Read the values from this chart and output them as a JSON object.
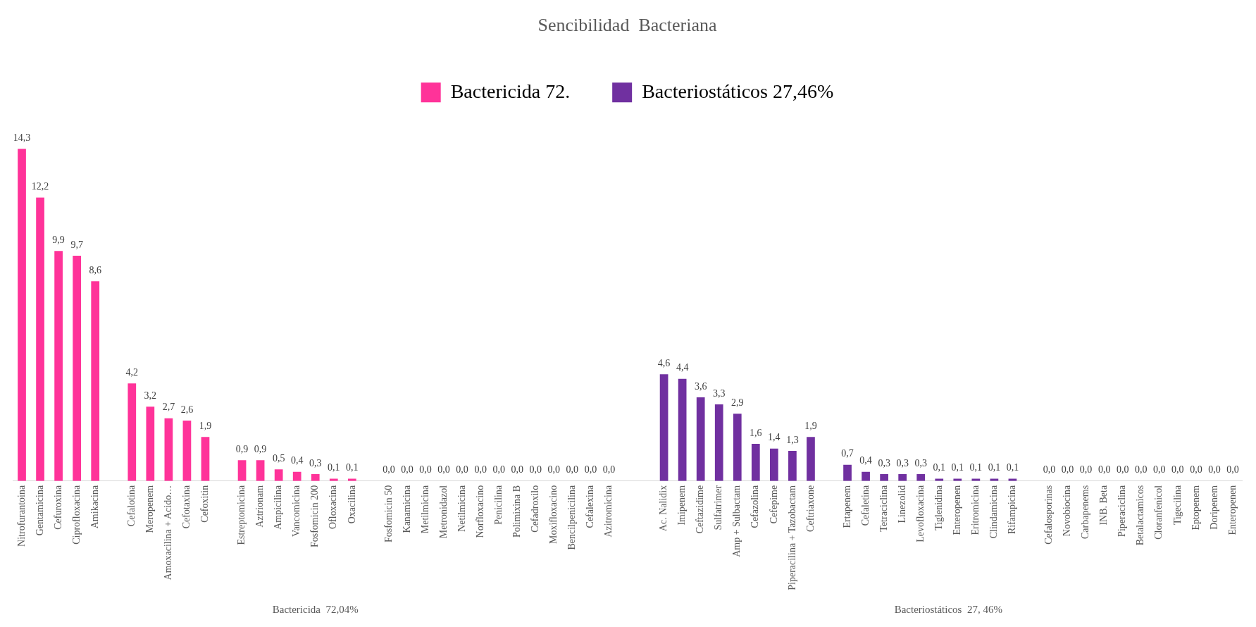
{
  "chart_data": {
    "type": "bar",
    "title": "Sencibilidad  Bacteriana",
    "categories": [
      "Nitrofurantoina",
      "Gentamicina",
      "Cefuroxina",
      "Ciprofloxacina",
      "Amikacina",
      null,
      "Cefalotina",
      "Meropenem",
      "Amoxacilina + Acido…",
      "Cefotaxina",
      "Cefoxitin",
      null,
      "Estreptomicina",
      "Aztrionam",
      "Ampicilina",
      "Vancomicina",
      "Fosfomicin 200",
      "Ofloxacina",
      "Oxacilina",
      null,
      "Fosfomicin 50",
      "Kanamicina",
      "Metilmicina",
      "Metronidazol",
      "Netilmicina",
      "Norfloxacino",
      "Penicilina",
      "Polimixina B",
      "Cefadroxilo",
      "Moxifloxacino",
      "Bencilpenicilina",
      "Cefalexina",
      "Azitromicina",
      null,
      null,
      "Ac. Nalidix",
      "Imipenem",
      "Ceftazidime",
      "Sulfatrimer",
      "Amp + Sulbactam",
      "Cefazolina",
      "Cefepime",
      "Piperacilina + Tazobactam",
      "Ceftriaxone",
      null,
      "Ertapenem",
      "Cefaletina",
      "Tetraciclina",
      "Linezolid",
      "Levofloxacina",
      "Tiglenidina",
      "Enteropenen",
      "Eritromicina",
      "Clindamicina",
      "Rifampicina",
      null,
      "Cefalosporinas",
      "Novobiocina",
      "Carbapenems",
      "INB. Beta",
      "Piperaciclina",
      "Betalactamicos",
      "Cloranfenicol",
      "Tigecilina",
      "Eptopenem",
      "Doripenem",
      "Enteropenen"
    ],
    "series": [
      {
        "name": "Bactericida 72.",
        "color": "#ff3399",
        "values": [
          14.3,
          12.2,
          9.9,
          9.7,
          8.6,
          null,
          4.2,
          3.2,
          2.7,
          2.6,
          1.9,
          null,
          0.9,
          0.9,
          0.5,
          0.4,
          0.3,
          0.1,
          0.1,
          null,
          0,
          0,
          0,
          0,
          0,
          0,
          0,
          0,
          0,
          0,
          0,
          0,
          0,
          null,
          null,
          null,
          null,
          null,
          null,
          null,
          null,
          null,
          null,
          null,
          null,
          null,
          null,
          null,
          null,
          null,
          null,
          null,
          null,
          null,
          null,
          null,
          null,
          null,
          null,
          null,
          null,
          null,
          null,
          null,
          null,
          null,
          null
        ],
        "value_labels": [
          "14,3",
          "12,2",
          "9,9",
          "9,7",
          "8,6",
          null,
          "4,2",
          "3,2",
          "2,7",
          "2,6",
          "1,9",
          null,
          "0,9",
          "0,9",
          "0,5",
          "0,4",
          "0,3",
          "0,1",
          "0,1",
          null,
          "0,0",
          "0,0",
          "0,0",
          "0,0",
          "0,0",
          "0,0",
          "0,0",
          "0,0",
          "0,0",
          "0,0",
          "0,0",
          "0,0",
          "0,0",
          null,
          null,
          null,
          null,
          null,
          null,
          null,
          null,
          null,
          null,
          null,
          null,
          null,
          null,
          null,
          null,
          null,
          null,
          null,
          null,
          null,
          null,
          null,
          null,
          null,
          null,
          null,
          null,
          null,
          null,
          null,
          null,
          null,
          null
        ]
      },
      {
        "name": "Bacteriostáticos 27,46%",
        "color": "#7030a0",
        "values": [
          null,
          null,
          null,
          null,
          null,
          null,
          null,
          null,
          null,
          null,
          null,
          null,
          null,
          null,
          null,
          null,
          null,
          null,
          null,
          null,
          null,
          null,
          null,
          null,
          null,
          null,
          null,
          null,
          null,
          null,
          null,
          null,
          null,
          null,
          null,
          4.6,
          4.4,
          3.6,
          3.3,
          2.9,
          1.6,
          1.4,
          1.3,
          1.9,
          null,
          0.7,
          0.4,
          0.3,
          0.3,
          0.3,
          0.1,
          0.1,
          0.1,
          0.1,
          0.1,
          null,
          0,
          0,
          0,
          0,
          0,
          0,
          0,
          0,
          0,
          0,
          0
        ],
        "value_labels": [
          null,
          null,
          null,
          null,
          null,
          null,
          null,
          null,
          null,
          null,
          null,
          null,
          null,
          null,
          null,
          null,
          null,
          null,
          null,
          null,
          null,
          null,
          null,
          null,
          null,
          null,
          null,
          null,
          null,
          null,
          null,
          null,
          null,
          null,
          null,
          "4,6",
          "4,4",
          "3,6",
          "3,3",
          "2,9",
          "1,6",
          "1,4",
          "1,3",
          "1,9",
          null,
          "0,7",
          "0,4",
          "0,3",
          "0,3",
          "0,3",
          "0,1",
          "0,1",
          "0,1",
          "0,1",
          "0,1",
          null,
          "0,0",
          "0,0",
          "0,0",
          "0,0",
          "0,0",
          "0,0",
          "0,0",
          "0,0",
          "0,0",
          "0,0",
          "0,0"
        ]
      }
    ],
    "annotations": [
      "Bactericida  72,04%",
      "Bacteriostáticos  27, 46%"
    ],
    "tick_labels": "x",
    "legend": "top",
    "grid": false
  }
}
